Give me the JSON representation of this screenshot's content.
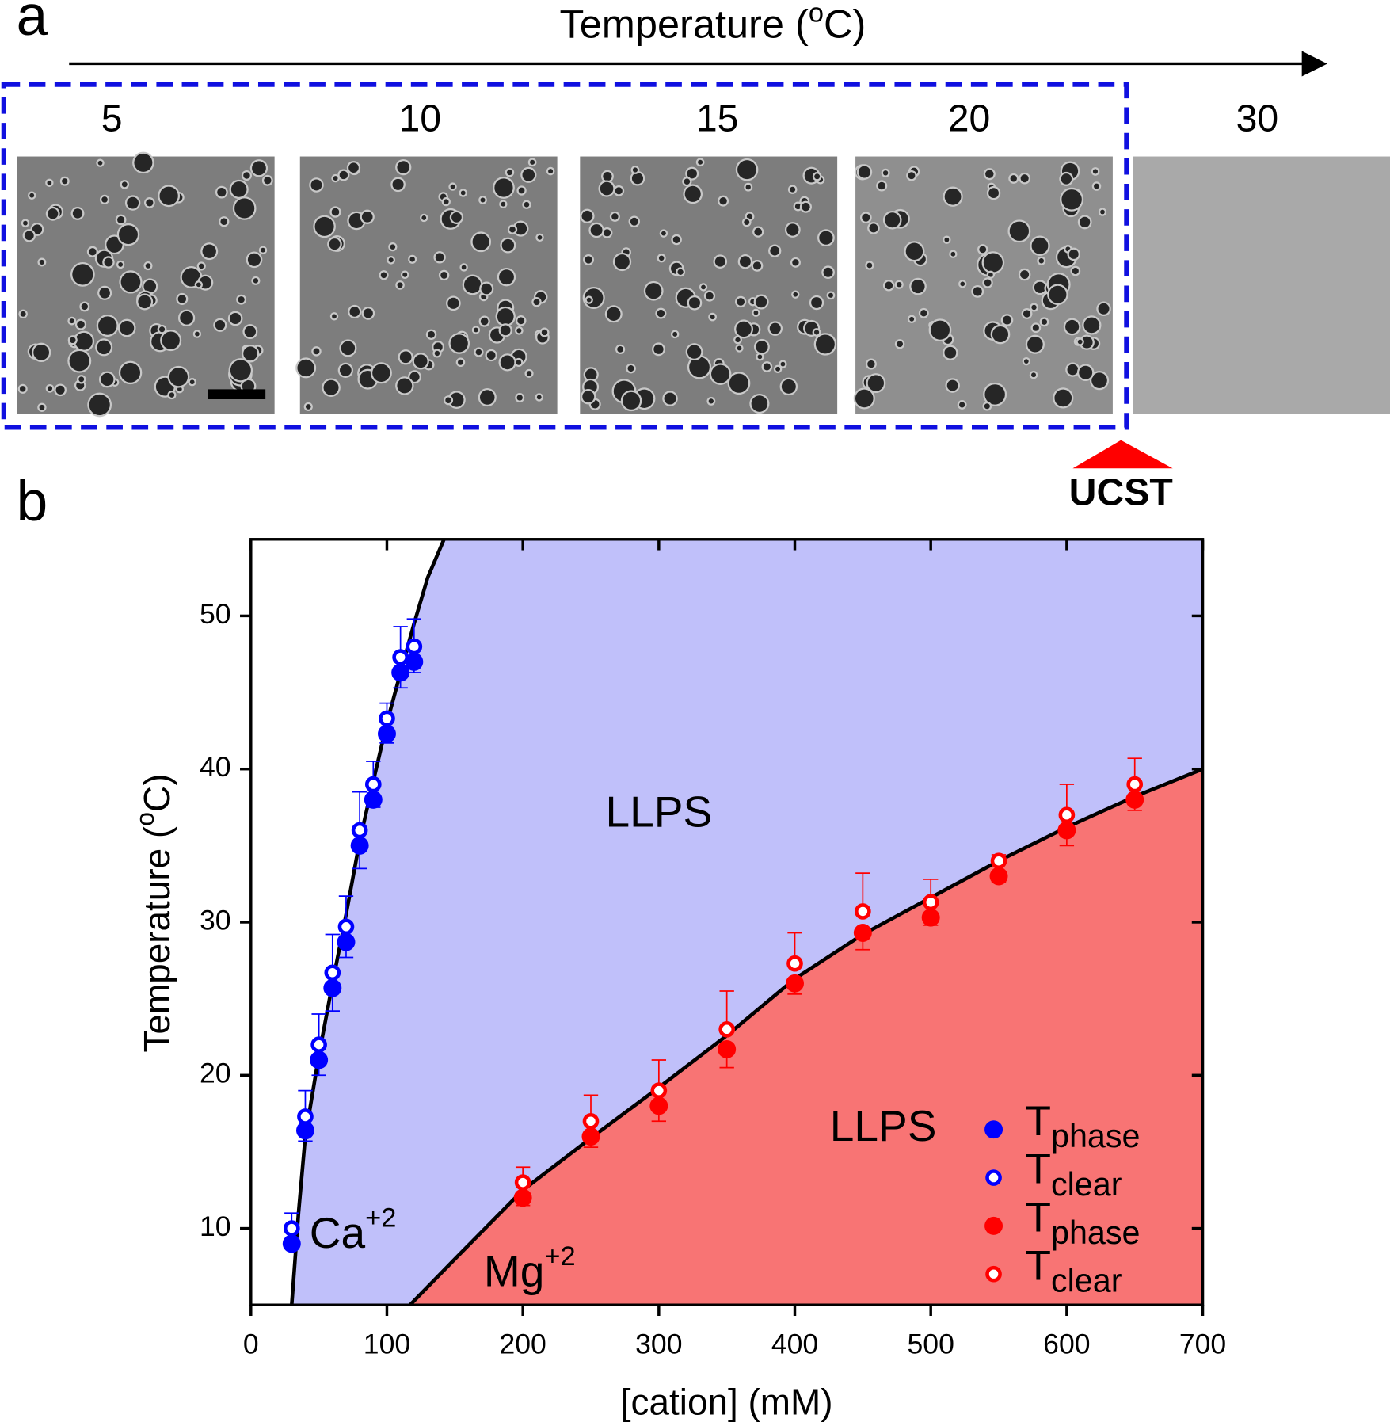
{
  "panel_a": {
    "label": "a",
    "header": [
      "Temperature (",
      "o",
      "C)"
    ],
    "temperatures": [
      5,
      10,
      15,
      20,
      30
    ],
    "marker": "UCST"
  },
  "chart_data": {
    "type": "scatter",
    "label": "b",
    "xlabel": "[cation] (mM)",
    "ylabel": [
      "Temperature (",
      "o",
      "C)"
    ],
    "xlim": [
      0,
      700
    ],
    "ylim": [
      5,
      55
    ],
    "xticks": [
      0,
      100,
      200,
      300,
      400,
      500,
      600,
      700
    ],
    "yticks": [
      10,
      20,
      30,
      40,
      50
    ],
    "fits": [
      {
        "color": "#000000",
        "fill": "#c0c0fa",
        "x": [
          30,
          35,
          40,
          50,
          60,
          70,
          80,
          90,
          100,
          110,
          120,
          130,
          142
        ],
        "values": [
          5,
          11,
          16,
          21.3,
          26,
          30.5,
          35.3,
          39.2,
          43,
          46.3,
          49.5,
          52.5,
          55
        ]
      },
      {
        "color": "#000000",
        "fill": "#f87474",
        "x": [
          117,
          150,
          200,
          250,
          300,
          350,
          400,
          450,
          500,
          550,
          600,
          650,
          700
        ],
        "values": [
          5,
          8,
          12.5,
          15.9,
          19.2,
          22.6,
          26.3,
          29.2,
          31.6,
          34,
          36.2,
          38.2,
          40
        ]
      }
    ],
    "annotations": [
      {
        "text": "LLPS",
        "x": 300,
        "y": 37
      },
      {
        "text": "LLPS",
        "x": 465,
        "y": 16.5
      },
      {
        "text": "Ca",
        "sup": "+2",
        "x": 75,
        "y": 9.5
      },
      {
        "text": "Mg",
        "sup": "+2",
        "x": 205,
        "y": 7
      }
    ],
    "series": [
      {
        "name": "T",
        "sub": "phase",
        "color": "#0000ff",
        "style": "filled",
        "error_dir": "down",
        "x": [
          30,
          40,
          50,
          60,
          70,
          80,
          90,
          100,
          110,
          120
        ],
        "values": [
          9,
          16.4,
          21,
          25.7,
          28.7,
          35,
          38,
          42.3,
          46.3,
          47
        ],
        "errors": [
          0.3,
          0.7,
          1,
          1.5,
          1,
          1.5,
          0.5,
          0.6,
          1,
          0.7
        ]
      },
      {
        "name": "T",
        "sub": "clear",
        "color": "#0000ff",
        "style": "open",
        "error_dir": "up",
        "x": [
          30,
          40,
          50,
          60,
          70,
          80,
          90,
          100,
          110,
          120
        ],
        "values": [
          10,
          17.3,
          22,
          26.7,
          29.7,
          36,
          39,
          43.3,
          47.3,
          48
        ],
        "errors": [
          1,
          1.7,
          2,
          2.5,
          2,
          2.5,
          1.5,
          1,
          2,
          1.8
        ]
      },
      {
        "name": "T",
        "sub": "phase",
        "color": "#ff0000",
        "style": "filled",
        "error_dir": "down",
        "x": [
          200,
          250,
          300,
          350,
          400,
          450,
          500,
          550,
          600,
          650
        ],
        "values": [
          12,
          16,
          18,
          21.7,
          26,
          29.3,
          30.3,
          33,
          36,
          38
        ],
        "errors": [
          0.5,
          0.7,
          1,
          1.2,
          0.7,
          1.1,
          0.5,
          0.4,
          1,
          0.7
        ]
      },
      {
        "name": "T",
        "sub": "clear",
        "color": "#ff0000",
        "style": "open",
        "error_dir": "up",
        "x": [
          200,
          250,
          300,
          350,
          400,
          450,
          500,
          550,
          600,
          650
        ],
        "values": [
          13,
          17,
          19,
          23,
          27.3,
          30.7,
          31.3,
          34,
          37,
          39
        ],
        "errors": [
          1,
          1.7,
          2,
          2.5,
          2,
          2.5,
          1.5,
          0.4,
          2,
          1.7
        ]
      }
    ]
  }
}
